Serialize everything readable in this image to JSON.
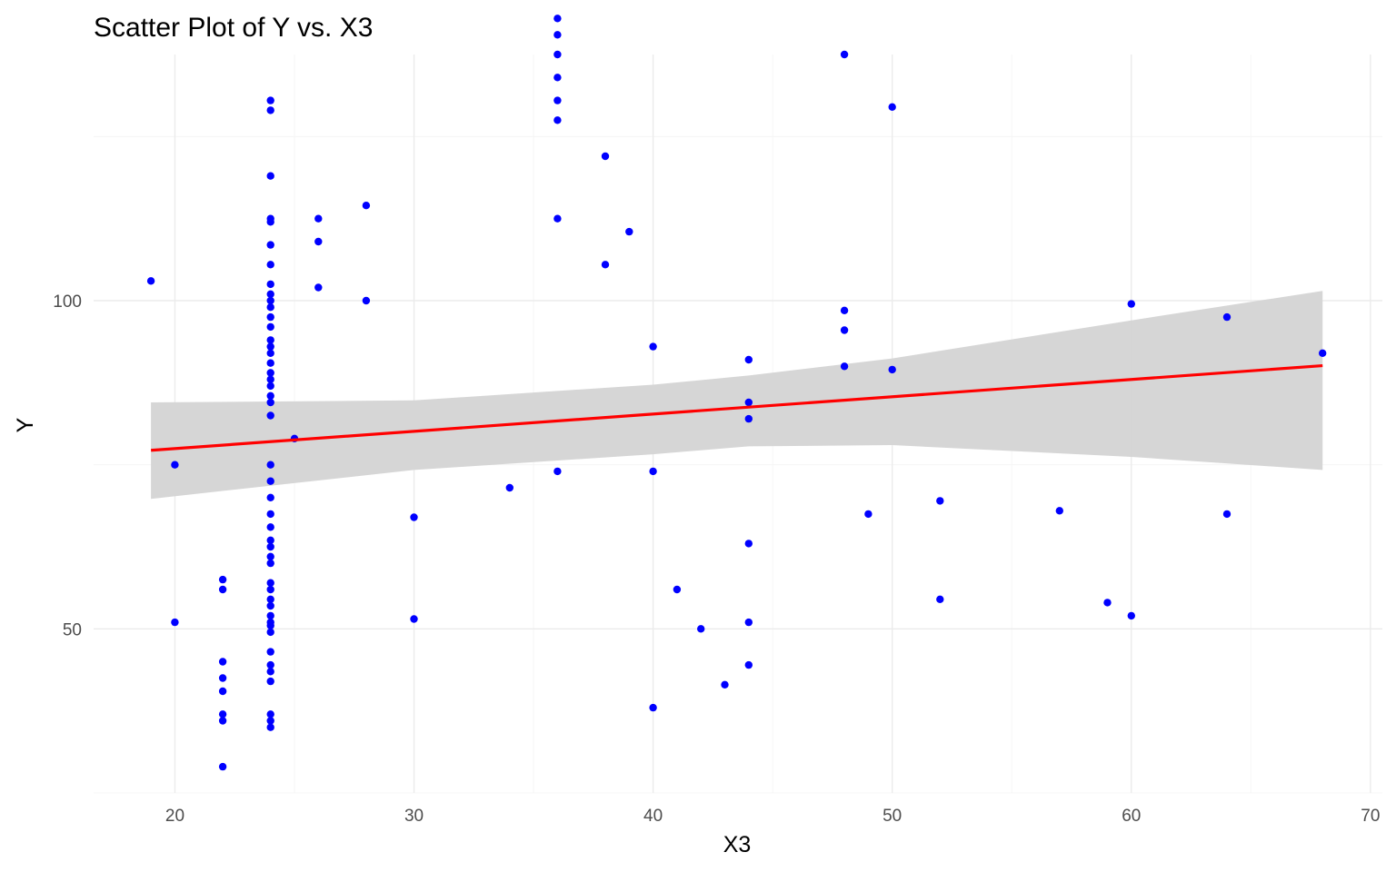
{
  "chart_data": {
    "type": "scatter",
    "title": "Scatter Plot of Y vs. X3",
    "xlabel": "X3",
    "ylabel": "Y",
    "xlim": [
      16.6,
      70.5
    ],
    "ylim": [
      25,
      137.5
    ],
    "x_major_ticks": [
      20,
      30,
      40,
      50,
      60,
      70
    ],
    "x_minor_ticks": [
      25,
      35,
      45,
      55,
      65
    ],
    "y_major_ticks": [
      50,
      100
    ],
    "y_minor_ticks": [
      25,
      75,
      125
    ],
    "tick_labels_x": [
      "20",
      "30",
      "40",
      "50",
      "60",
      "70"
    ],
    "tick_labels_y": [
      "50",
      "100"
    ],
    "grid": true,
    "point_color": "#0000ff",
    "line_color": "#ff0000",
    "band_color": "#d4d4d4",
    "points": [
      [
        19,
        103
      ],
      [
        20,
        75
      ],
      [
        20,
        51
      ],
      [
        22,
        57.5
      ],
      [
        22,
        56
      ],
      [
        22,
        45
      ],
      [
        22,
        42.5
      ],
      [
        22,
        40.5
      ],
      [
        22,
        37
      ],
      [
        22,
        36
      ],
      [
        22,
        29
      ],
      [
        24,
        130.5
      ],
      [
        24,
        129
      ],
      [
        24,
        119
      ],
      [
        24,
        112.5
      ],
      [
        24,
        112
      ],
      [
        24,
        108.5
      ],
      [
        24,
        105.5
      ],
      [
        24,
        102.5
      ],
      [
        24,
        101
      ],
      [
        24,
        100
      ],
      [
        24,
        99
      ],
      [
        24,
        97.5
      ],
      [
        24,
        96
      ],
      [
        24,
        94
      ],
      [
        24,
        93
      ],
      [
        24,
        92
      ],
      [
        24,
        90.5
      ],
      [
        24,
        89
      ],
      [
        24,
        88
      ],
      [
        24,
        87
      ],
      [
        24,
        85.5
      ],
      [
        24,
        84.5
      ],
      [
        24,
        82.5
      ],
      [
        24,
        75
      ],
      [
        24,
        72.5
      ],
      [
        24,
        70
      ],
      [
        24,
        67.5
      ],
      [
        24,
        65.5
      ],
      [
        24,
        63.5
      ],
      [
        24,
        62.5
      ],
      [
        24,
        61
      ],
      [
        24,
        60
      ],
      [
        24,
        57
      ],
      [
        24,
        56
      ],
      [
        24,
        54.5
      ],
      [
        24,
        53.5
      ],
      [
        24,
        52
      ],
      [
        24,
        51
      ],
      [
        24,
        50.5
      ],
      [
        24,
        49.5
      ],
      [
        24,
        46.5
      ],
      [
        24,
        44.5
      ],
      [
        24,
        43.5
      ],
      [
        24,
        42
      ],
      [
        24,
        37
      ],
      [
        24,
        36
      ],
      [
        24,
        35
      ],
      [
        25,
        79
      ],
      [
        26,
        112.5
      ],
      [
        26,
        109
      ],
      [
        26,
        102
      ],
      [
        28,
        114.5
      ],
      [
        28,
        100
      ],
      [
        30,
        67
      ],
      [
        30,
        51.5
      ],
      [
        34,
        71.5
      ],
      [
        36,
        143
      ],
      [
        36,
        140.5
      ],
      [
        36,
        137.5
      ],
      [
        36,
        134
      ],
      [
        36,
        130.5
      ],
      [
        36,
        127.5
      ],
      [
        36,
        112.5
      ],
      [
        36,
        74
      ],
      [
        38,
        122
      ],
      [
        38,
        105.5
      ],
      [
        39,
        110.5
      ],
      [
        40,
        93
      ],
      [
        40,
        74
      ],
      [
        40,
        38
      ],
      [
        41,
        56
      ],
      [
        42,
        50
      ],
      [
        43,
        41.5
      ],
      [
        44,
        91
      ],
      [
        44,
        84.5
      ],
      [
        44,
        82
      ],
      [
        44,
        63
      ],
      [
        44,
        51
      ],
      [
        44,
        44.5
      ],
      [
        48,
        137.5
      ],
      [
        48,
        98.5
      ],
      [
        48,
        95.5
      ],
      [
        48,
        90
      ],
      [
        49,
        67.5
      ],
      [
        50,
        129.5
      ],
      [
        50,
        89.5
      ],
      [
        52,
        69.5
      ],
      [
        52,
        54.5
      ],
      [
        57,
        68
      ],
      [
        59,
        54
      ],
      [
        60,
        99.5
      ],
      [
        60,
        52
      ],
      [
        64,
        97.5
      ],
      [
        64,
        67.5
      ],
      [
        68,
        92
      ]
    ],
    "fit_line": {
      "x": [
        19,
        68
      ],
      "y": [
        77.2,
        90.1
      ]
    },
    "confidence_band": {
      "x": [
        19,
        30,
        40,
        44,
        50,
        60,
        68
      ],
      "upper": [
        84.5,
        84.8,
        87.2,
        88.6,
        91.2,
        97.0,
        101.5
      ],
      "lower": [
        69.8,
        74.2,
        76.6,
        77.8,
        78.0,
        76.2,
        74.2
      ]
    }
  }
}
